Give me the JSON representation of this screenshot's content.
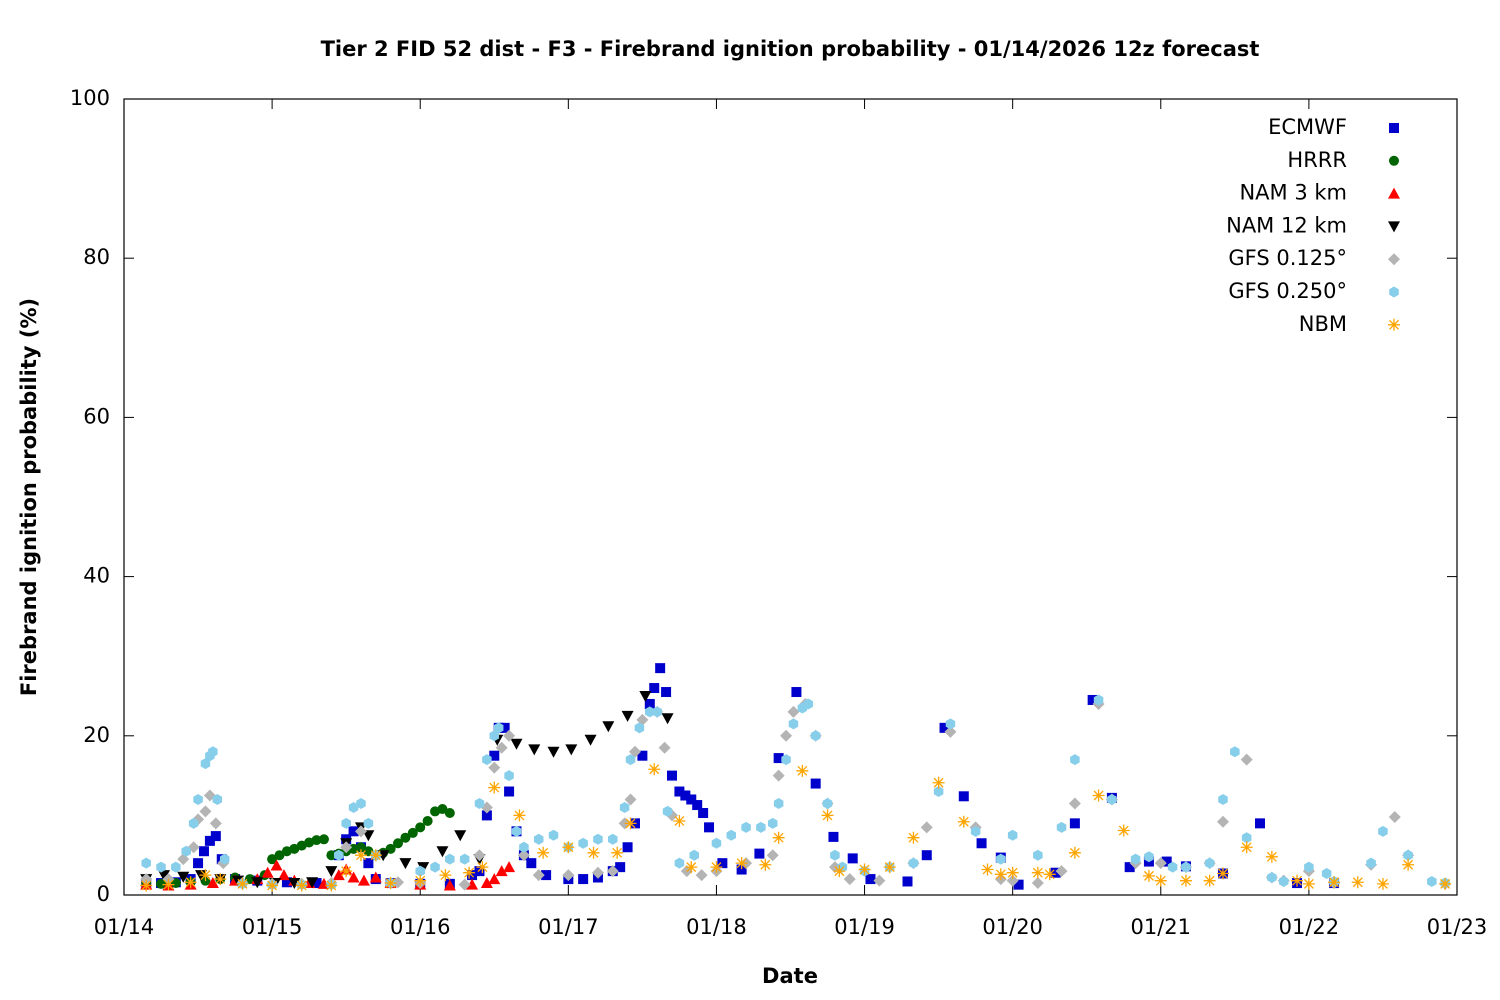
{
  "chart_data": {
    "type": "scatter",
    "title": "Tier 2 FID 52 dist - F3 - Firebrand ignition probability - 01/14/2026 12z forecast",
    "x_label": "Date",
    "y_label": "Firebrand ignition probability (%)",
    "xlim": [
      0,
      9
    ],
    "xticks": [
      {
        "value": 0,
        "label": "01/14"
      },
      {
        "value": 1,
        "label": "01/15"
      },
      {
        "value": 2,
        "label": "01/16"
      },
      {
        "value": 3,
        "label": "01/17"
      },
      {
        "value": 4,
        "label": "01/18"
      },
      {
        "value": 5,
        "label": "01/19"
      },
      {
        "value": 6,
        "label": "01/20"
      },
      {
        "value": 7,
        "label": "01/21"
      },
      {
        "value": 8,
        "label": "01/22"
      },
      {
        "value": 9,
        "label": "01/23"
      }
    ],
    "ylim": [
      0,
      100
    ],
    "yticks": [
      0,
      20,
      40,
      60,
      80,
      100
    ],
    "legend": "top-right",
    "series": [
      {
        "name": "ECMWF",
        "color": "#0000cc",
        "marker": "square",
        "x": [
          0.15,
          0.25,
          0.35,
          0.45,
          0.5,
          0.54,
          0.58,
          0.62,
          0.66,
          0.75,
          0.9,
          1.1,
          1.3,
          1.45,
          1.5,
          1.55,
          1.6,
          1.65,
          1.7,
          1.8,
          2.0,
          2.2,
          2.35,
          2.4,
          2.45,
          2.5,
          2.53,
          2.57,
          2.6,
          2.65,
          2.7,
          2.75,
          2.85,
          3.0,
          3.1,
          3.2,
          3.3,
          3.35,
          3.4,
          3.45,
          3.5,
          3.55,
          3.58,
          3.62,
          3.66,
          3.7,
          3.75,
          3.79,
          3.83,
          3.87,
          3.91,
          3.95,
          4.04,
          4.17,
          4.29,
          4.42,
          4.54,
          4.67,
          4.79,
          4.92,
          5.04,
          5.29,
          5.42,
          5.54,
          5.67,
          5.79,
          5.92,
          6.04,
          6.29,
          6.42,
          6.54,
          6.67,
          6.79,
          6.92,
          7.04,
          7.17,
          7.42,
          7.67,
          7.92,
          8.17
        ],
        "values": [
          1.5,
          1.5,
          1.6,
          2,
          4,
          5.5,
          6.8,
          7.4,
          4.5,
          2,
          1.8,
          1.6,
          1.5,
          5,
          7,
          8,
          6,
          4,
          2,
          1.5,
          1.4,
          1.4,
          2.5,
          3,
          10,
          17.5,
          21,
          21,
          13,
          8,
          5,
          4,
          2.5,
          2,
          2,
          2.2,
          3,
          3.5,
          6,
          9,
          17.5,
          24,
          26,
          28.5,
          25.5,
          15,
          13,
          12.5,
          12,
          11.3,
          10.3,
          8.5,
          4,
          3.2,
          5.2,
          17.2,
          25.5,
          14,
          7.3,
          4.6,
          2,
          1.7,
          5,
          21,
          12.4,
          6.5,
          4.7,
          1.3,
          2.8,
          9,
          24.5,
          12.2,
          3.5,
          4.2,
          4.2,
          3.6,
          2.7,
          9,
          1.5,
          1.5
        ]
      },
      {
        "name": "HRRR",
        "color": "#006400",
        "marker": "circle",
        "x": [
          0.15,
          0.25,
          0.35,
          0.45,
          0.55,
          0.65,
          0.75,
          0.85,
          0.95,
          1.0,
          1.05,
          1.1,
          1.15,
          1.2,
          1.25,
          1.3,
          1.35,
          1.4,
          1.45,
          1.5,
          1.55,
          1.6,
          1.65,
          1.7,
          1.75,
          1.8,
          1.85,
          1.9,
          1.95,
          2.0,
          2.05,
          2.1,
          2.15,
          2.2
        ],
        "values": [
          1.5,
          1.4,
          1.5,
          1.6,
          1.8,
          2,
          2.2,
          2,
          2.5,
          4.5,
          5,
          5.5,
          5.8,
          6.2,
          6.6,
          6.9,
          7,
          5,
          5.2,
          5.5,
          5.8,
          6,
          5.5,
          5,
          5.3,
          5.8,
          6.5,
          7.2,
          7.8,
          8.5,
          9.3,
          10.5,
          10.8,
          10.3
        ]
      },
      {
        "name": "NAM 3 km",
        "color": "#ff0000",
        "marker": "triangle-up",
        "x": [
          0.15,
          0.3,
          0.45,
          0.6,
          0.75,
          0.9,
          0.97,
          1.03,
          1.08,
          1.15,
          1.25,
          1.35,
          1.45,
          1.5,
          1.55,
          1.62,
          1.7,
          1.8,
          2.0,
          2.2,
          2.35,
          2.45,
          2.5,
          2.55,
          2.6
        ],
        "values": [
          1.3,
          1.2,
          1.3,
          1.5,
          1.8,
          2,
          2.8,
          3.7,
          2.5,
          1.8,
          1.5,
          1.4,
          2.5,
          3.2,
          2.2,
          1.8,
          2.2,
          1.5,
          1.3,
          1.2,
          1.3,
          1.5,
          2,
          3,
          3.5
        ]
      },
      {
        "name": "NAM 12 km",
        "color": "#000000",
        "marker": "triangle-down",
        "x": [
          0.15,
          0.27,
          0.4,
          0.52,
          0.65,
          0.77,
          0.9,
          1.02,
          1.15,
          1.27,
          1.4,
          1.5,
          1.6,
          1.65,
          1.75,
          1.9,
          2.02,
          2.15,
          2.27,
          2.4,
          2.52,
          2.65,
          2.77,
          2.9,
          3.02,
          3.15,
          3.27,
          3.4,
          3.52,
          3.67
        ],
        "values": [
          2,
          2.5,
          2.3,
          2.5,
          2,
          1.8,
          1.6,
          1.5,
          1.5,
          1.6,
          3,
          6.5,
          8.5,
          7.5,
          5,
          4,
          3.5,
          5.5,
          7.5,
          4.5,
          19.5,
          19,
          18.3,
          18,
          18.3,
          19.5,
          21.2,
          22.5,
          25,
          22.2
        ]
      },
      {
        "name": "GFS 0.125°",
        "color": "#b4b4b4",
        "marker": "diamond",
        "x": [
          0.15,
          0.3,
          0.4,
          0.47,
          0.5,
          0.55,
          0.58,
          0.62,
          0.67,
          0.8,
          1.0,
          1.2,
          1.4,
          1.5,
          1.6,
          1.7,
          1.85,
          2.0,
          2.3,
          2.4,
          2.45,
          2.5,
          2.55,
          2.6,
          2.7,
          2.8,
          3.0,
          3.2,
          3.3,
          3.38,
          3.42,
          3.45,
          3.5,
          3.6,
          3.65,
          3.7,
          3.8,
          3.9,
          4.0,
          4.2,
          4.38,
          4.42,
          4.47,
          4.52,
          4.6,
          4.67,
          4.75,
          4.8,
          4.9,
          5.1,
          5.33,
          5.42,
          5.58,
          5.75,
          5.92,
          6.0,
          6.17,
          6.33,
          6.42,
          6.58,
          6.67,
          6.83,
          7.0,
          7.17,
          7.33,
          7.42,
          7.58,
          7.75,
          7.83,
          8.0,
          8.17,
          8.42,
          8.58,
          8.67,
          8.92
        ],
        "values": [
          2,
          2,
          4.5,
          6,
          9.5,
          10.5,
          12.5,
          9,
          4,
          1.5,
          1.4,
          1.4,
          1.5,
          6,
          8,
          5,
          1.6,
          1.5,
          1.3,
          5,
          11,
          16,
          18.5,
          20,
          5,
          2.5,
          2.5,
          2.8,
          3,
          9,
          12,
          18,
          22,
          23,
          18.5,
          10,
          3,
          2.5,
          3,
          4,
          5,
          15,
          20,
          23,
          24,
          20,
          11.5,
          3.5,
          2,
          1.8,
          4,
          8.5,
          20.5,
          8.5,
          2,
          1.8,
          1.5,
          3,
          11.5,
          24,
          12,
          4,
          4,
          3.5,
          4,
          9.2,
          17,
          2.2,
          1.8,
          3,
          1.5,
          3.8,
          9.8,
          5,
          1.4
        ]
      },
      {
        "name": "GFS 0.250°",
        "color": "#87ceeb",
        "marker": "hexagon",
        "x": [
          0.15,
          0.25,
          0.35,
          0.42,
          0.47,
          0.5,
          0.55,
          0.58,
          0.6,
          0.63,
          0.68,
          0.8,
          1.0,
          1.2,
          1.4,
          1.45,
          1.5,
          1.55,
          1.6,
          1.65,
          1.7,
          1.8,
          2.0,
          2.1,
          2.2,
          2.3,
          2.4,
          2.45,
          2.5,
          2.53,
          2.6,
          2.65,
          2.7,
          2.8,
          2.9,
          3.0,
          3.1,
          3.2,
          3.3,
          3.38,
          3.42,
          3.48,
          3.55,
          3.6,
          3.67,
          3.75,
          3.85,
          4.0,
          4.1,
          4.2,
          4.3,
          4.38,
          4.42,
          4.47,
          4.52,
          4.58,
          4.62,
          4.67,
          4.75,
          4.8,
          4.85,
          5.0,
          5.17,
          5.33,
          5.5,
          5.58,
          5.75,
          5.92,
          6.0,
          6.17,
          6.33,
          6.42,
          6.58,
          6.67,
          6.83,
          6.92,
          7.08,
          7.17,
          7.33,
          7.42,
          7.5,
          7.58,
          7.75,
          7.83,
          8.0,
          8.12,
          8.17,
          8.42,
          8.5,
          8.67,
          8.83,
          8.92
        ],
        "values": [
          4,
          3.5,
          3.5,
          5.5,
          9,
          12,
          16.5,
          17.5,
          18,
          12,
          4.5,
          1.4,
          1.3,
          1.3,
          1.3,
          5,
          9,
          11,
          11.5,
          9,
          5,
          1.5,
          3,
          3.5,
          4.5,
          4.5,
          11.5,
          17,
          20,
          21,
          15,
          8,
          6,
          7,
          7.5,
          6,
          6.5,
          7,
          7,
          11,
          17,
          21,
          23,
          23,
          10.5,
          4,
          5,
          6.5,
          7.5,
          8.5,
          8.5,
          9,
          11.5,
          17,
          21.5,
          23.5,
          24,
          20,
          11.5,
          5,
          3.5,
          3,
          3.5,
          4,
          13,
          21.5,
          8,
          4.5,
          7.5,
          5,
          8.5,
          17,
          24.5,
          12,
          4.5,
          4.8,
          3.5,
          3.5,
          4,
          12,
          18,
          7.2,
          2.2,
          1.7,
          3.5,
          2.7,
          1.7,
          4,
          8,
          5,
          1.7,
          1.5
        ]
      },
      {
        "name": "NBM",
        "color": "#ffa500",
        "marker": "asterisk",
        "x": [
          0.15,
          0.3,
          0.45,
          0.55,
          0.65,
          0.8,
          1.0,
          1.2,
          1.4,
          1.5,
          1.6,
          1.7,
          1.8,
          2.0,
          2.17,
          2.33,
          2.42,
          2.5,
          2.67,
          2.83,
          3.0,
          3.17,
          3.33,
          3.42,
          3.58,
          3.75,
          3.83,
          4.0,
          4.17,
          4.33,
          4.42,
          4.58,
          4.75,
          4.83,
          5.0,
          5.17,
          5.33,
          5.5,
          5.67,
          5.83,
          5.92,
          6.0,
          6.17,
          6.25,
          6.42,
          6.58,
          6.75,
          6.92,
          7.0,
          7.17,
          7.33,
          7.42,
          7.58,
          7.75,
          7.92,
          8.0,
          8.17,
          8.33,
          8.5,
          8.67,
          8.92
        ],
        "values": [
          1.2,
          1.3,
          1.6,
          2.5,
          2,
          1.4,
          1.2,
          1.2,
          1.2,
          3,
          5,
          5,
          1.5,
          1.8,
          2.5,
          2.8,
          3.5,
          13.5,
          10,
          5.3,
          6,
          5.3,
          5.3,
          9,
          15.8,
          9.3,
          3.5,
          3.5,
          4,
          3.8,
          7.2,
          15.6,
          10,
          3,
          3.2,
          3.5,
          7.2,
          14.1,
          9.2,
          3.2,
          2.6,
          2.8,
          2.8,
          2.6,
          5.3,
          12.5,
          8.1,
          2.4,
          1.8,
          1.8,
          1.8,
          2.7,
          6,
          4.8,
          1.8,
          1.4,
          1.6,
          1.6,
          1.4,
          3.8,
          1.4
        ]
      }
    ]
  }
}
